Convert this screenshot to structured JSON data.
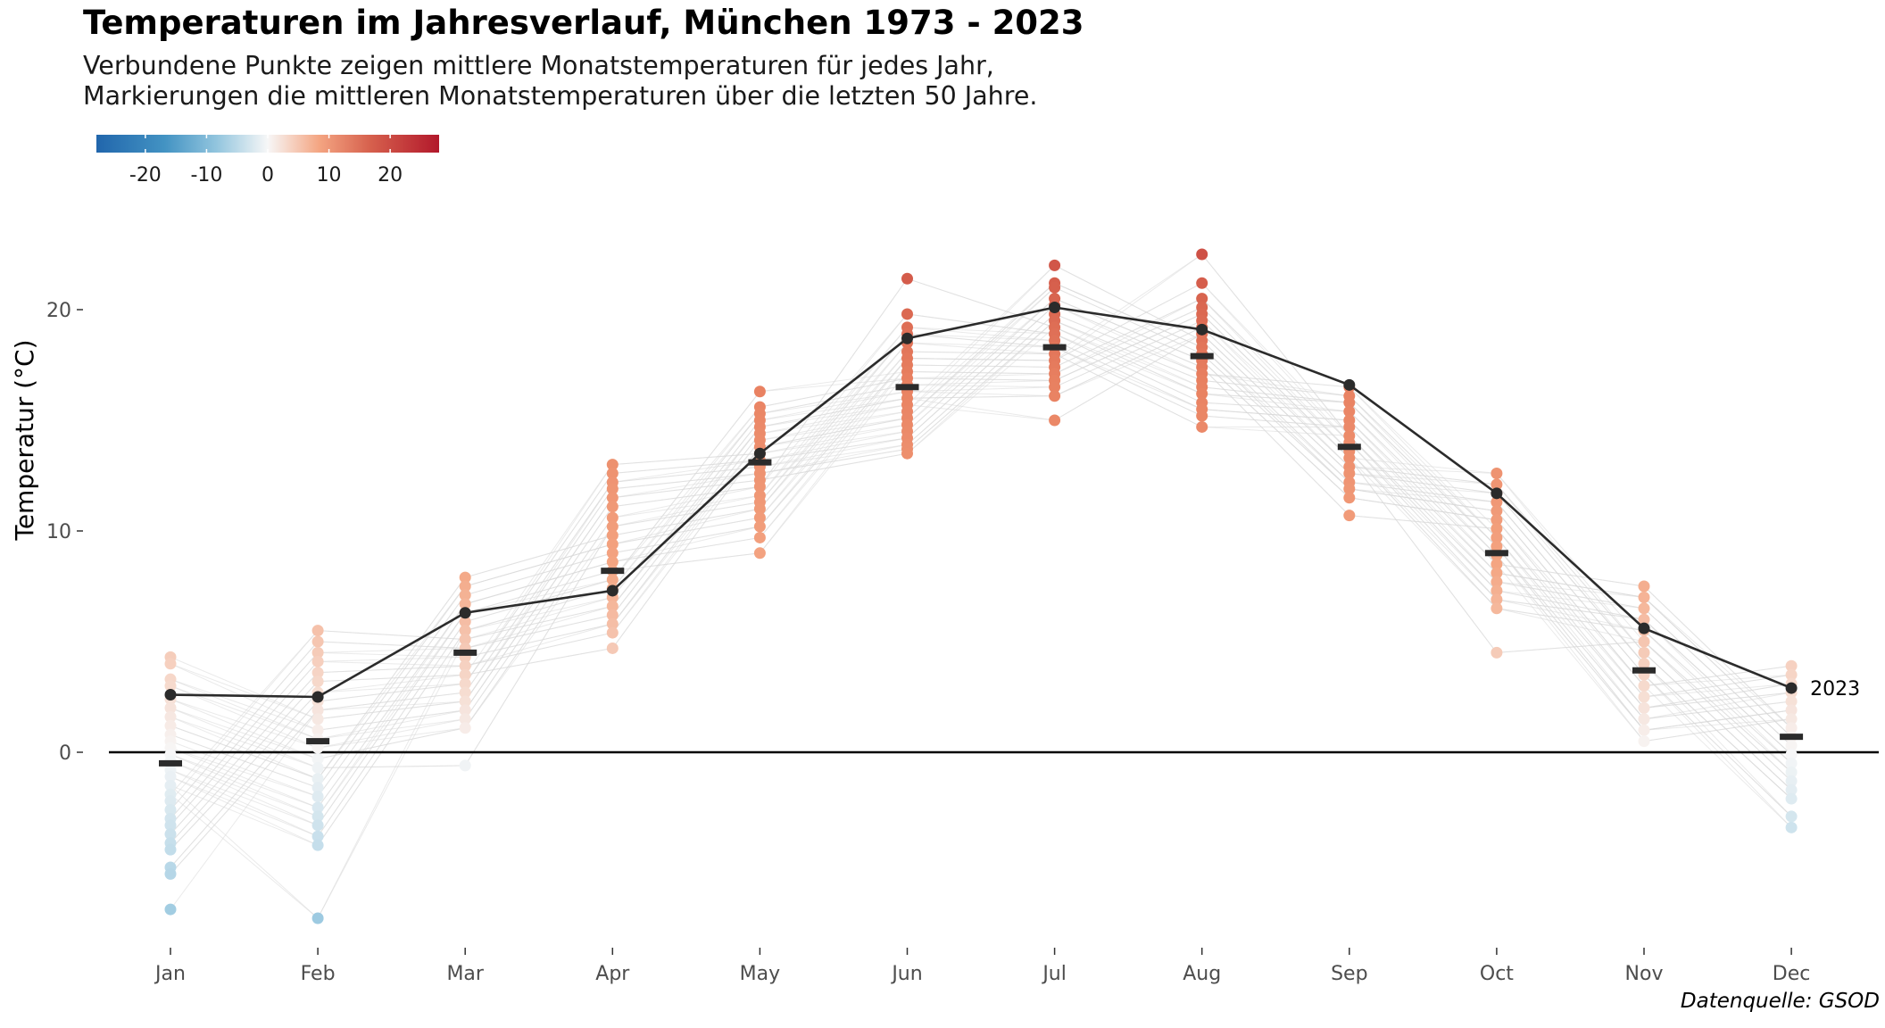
{
  "title": "Temperaturen im Jahresverlauf, München 1973 - 2023",
  "subtitle_line1": "Verbundene Punkte zeigen mittlere Monatstemperaturen für jedes Jahr,",
  "subtitle_line2": "Markierungen die mittleren Monatstemperaturen über die letzten 50 Jahre.",
  "caption": "Datenquelle: GSOD",
  "colors": {
    "highlight_line": "#2b2b2b",
    "background_lines": "#d9d9d9",
    "mean_marker": "#2b2b2b",
    "zero_line": "#000000",
    "scale_low": "#2166ac",
    "scale_mid": "#f7f7f7",
    "scale_high": "#b2182b"
  },
  "legend": {
    "type": "colorbar",
    "position": "top-left",
    "ticks": [
      -20,
      -10,
      0,
      10,
      20
    ],
    "tick_labels": [
      "-20",
      "-10",
      "0",
      "10",
      "20"
    ],
    "range": [
      -28,
      28
    ]
  },
  "chart_data": {
    "type": "line",
    "title": "Temperaturen im Jahresverlauf, München 1973 - 2023",
    "xlabel": "",
    "ylabel": "Temperatur (°C)",
    "categories": [
      "Jan",
      "Feb",
      "Mar",
      "Apr",
      "May",
      "Jun",
      "Jul",
      "Aug",
      "Sep",
      "Oct",
      "Nov",
      "Dec"
    ],
    "ylim": [
      -9,
      24
    ],
    "yticks": [
      0,
      10,
      20
    ],
    "grid": false,
    "monthly_mean_1973_2023": [
      -0.5,
      0.5,
      4.5,
      8.2,
      13.1,
      16.5,
      18.3,
      17.9,
      13.8,
      9.0,
      3.7,
      0.7
    ],
    "highlight_series": {
      "label": "2023",
      "values": [
        2.6,
        2.5,
        6.3,
        7.3,
        13.5,
        18.7,
        20.1,
        19.1,
        16.6,
        11.7,
        5.6,
        2.9
      ]
    },
    "year_points": [
      [
        4.3,
        4.0,
        3.3,
        3.0,
        2.4,
        2.0,
        1.6,
        1.2,
        0.8,
        0.5,
        0.2,
        -0.1,
        -0.4,
        -0.8,
        -1.1,
        -1.5,
        -1.9,
        -2.2,
        -2.6,
        -3.0,
        -3.3,
        -3.7,
        -4.1,
        -4.4,
        -5.2,
        -5.5,
        -7.1
      ],
      [
        5.5,
        5.0,
        4.5,
        4.1,
        3.6,
        3.2,
        2.7,
        2.3,
        1.9,
        1.5,
        1.0,
        0.6,
        0.2,
        -0.3,
        -0.7,
        -1.2,
        -1.6,
        -2.0,
        -2.5,
        -2.9,
        -3.3,
        -3.8,
        -4.2,
        -7.5
      ],
      [
        7.9,
        7.5,
        7.1,
        6.7,
        6.3,
        5.9,
        5.5,
        5.1,
        4.7,
        4.3,
        3.9,
        3.5,
        3.1,
        2.7,
        2.3,
        1.9,
        1.5,
        1.1,
        -0.6
      ],
      [
        13.0,
        12.6,
        12.2,
        11.9,
        11.5,
        11.1,
        10.6,
        10.2,
        9.8,
        9.4,
        9.0,
        8.6,
        8.2,
        7.8,
        7.4,
        7.0,
        6.6,
        6.2,
        5.8,
        5.4,
        4.7
      ],
      [
        16.3,
        15.6,
        15.3,
        15.0,
        14.7,
        14.4,
        14.1,
        13.8,
        13.5,
        13.2,
        12.9,
        12.6,
        12.3,
        12.0,
        11.6,
        11.3,
        11.0,
        10.6,
        10.2,
        9.7,
        9.0
      ],
      [
        21.4,
        19.8,
        19.2,
        18.9,
        18.5,
        18.1,
        17.8,
        17.5,
        17.2,
        16.9,
        16.6,
        16.3,
        16.0,
        15.7,
        15.4,
        15.1,
        14.8,
        14.5,
        14.2,
        13.9,
        13.7,
        13.5
      ],
      [
        22.0,
        21.2,
        21.0,
        20.5,
        20.2,
        19.8,
        19.5,
        19.2,
        18.9,
        18.6,
        18.3,
        18.0,
        17.7,
        17.4,
        17.1,
        16.8,
        16.5,
        16.1,
        15.0
      ],
      [
        22.5,
        21.2,
        20.5,
        20.1,
        19.8,
        19.5,
        19.2,
        18.9,
        18.6,
        18.3,
        18.0,
        17.7,
        17.4,
        17.1,
        16.8,
        16.5,
        16.2,
        15.8,
        15.5,
        15.2,
        14.7
      ],
      [
        16.5,
        16.1,
        15.8,
        15.4,
        15.0,
        14.7,
        14.3,
        14.0,
        13.6,
        13.3,
        12.9,
        12.6,
        12.2,
        11.9,
        11.5,
        10.7
      ],
      [
        12.6,
        12.1,
        11.7,
        11.3,
        10.9,
        10.5,
        10.1,
        9.7,
        9.3,
        8.9,
        8.5,
        8.1,
        7.7,
        7.3,
        6.9,
        6.5,
        4.5
      ],
      [
        7.5,
        7.0,
        6.5,
        6.0,
        5.5,
        5.0,
        4.5,
        4.0,
        3.5,
        3.0,
        2.5,
        2.0,
        1.5,
        1.0,
        0.5
      ],
      [
        3.9,
        3.5,
        3.1,
        2.7,
        2.3,
        1.9,
        1.5,
        1.1,
        0.7,
        0.3,
        -0.1,
        -0.5,
        -0.9,
        -1.3,
        -1.7,
        -2.1,
        -2.9,
        -3.4
      ]
    ]
  }
}
